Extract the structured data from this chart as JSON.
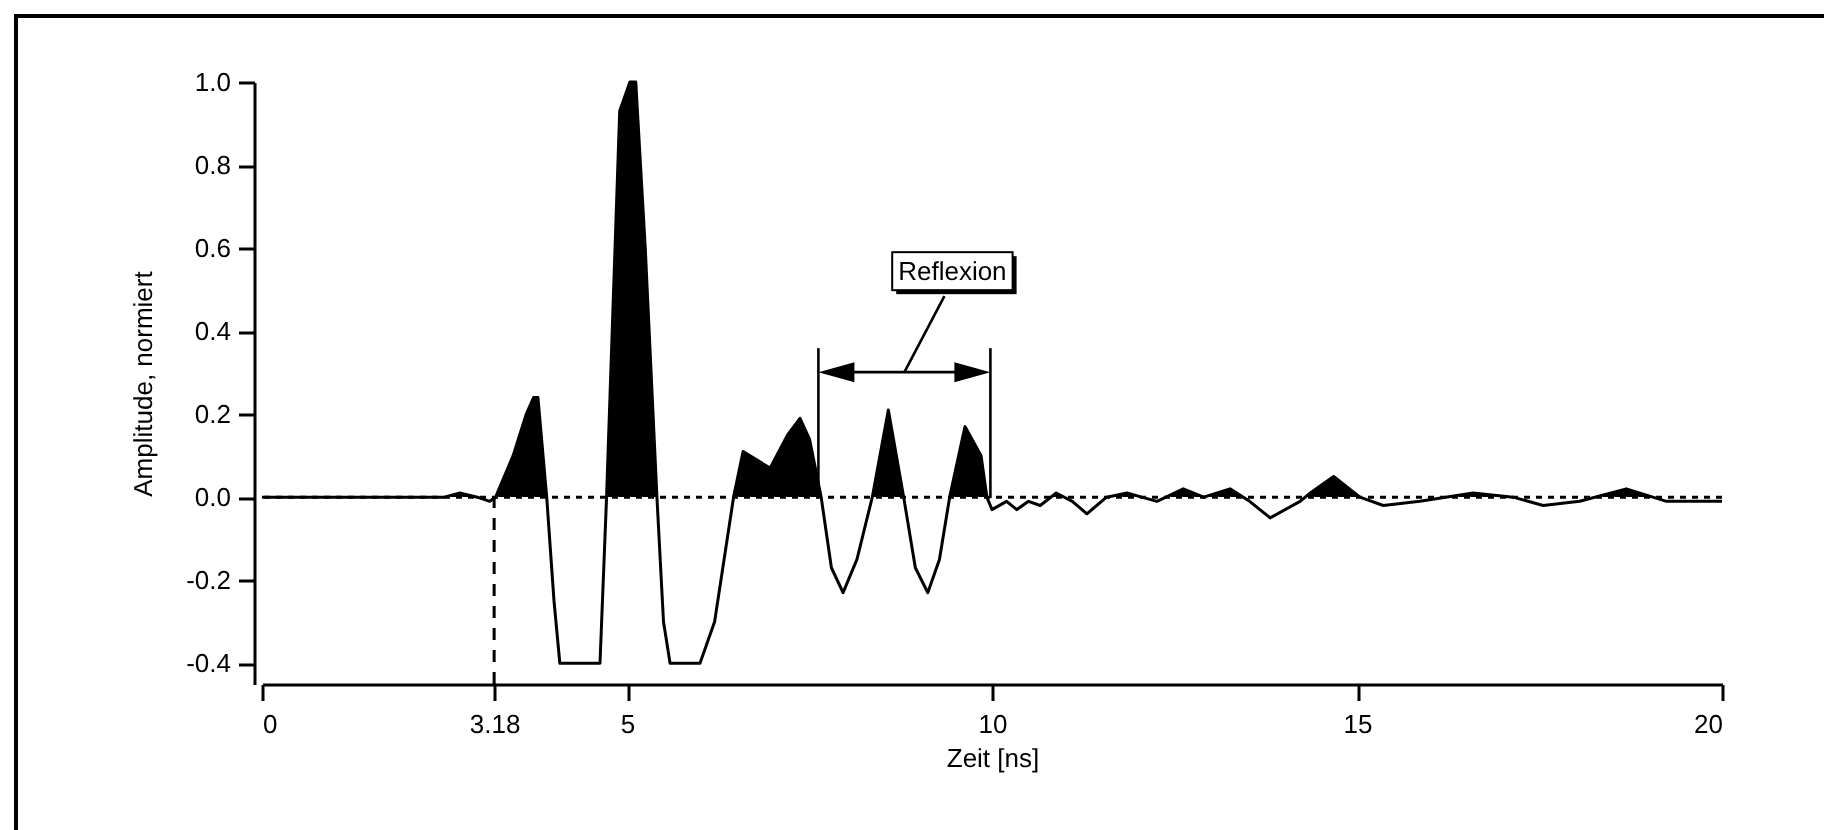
{
  "chart_data": {
    "type": "area",
    "xlabel": "Zeit [ns]",
    "ylabel": "Amplitude, normiert",
    "xlim": [
      0,
      20
    ],
    "xticks": [
      0,
      3.18,
      5,
      10,
      15,
      20
    ],
    "ylim": [
      -0.45,
      1.0
    ],
    "yticks": [
      {
        "value": -0.4,
        "label": "-0.4"
      },
      {
        "value": -0.2,
        "label": "-0.2"
      },
      {
        "value": 0,
        "label": "0.0"
      },
      {
        "value": 0.2,
        "label": "0.2"
      },
      {
        "value": 0.4,
        "label": "0.4"
      },
      {
        "value": 0.6,
        "label": "0.6"
      },
      {
        "value": 0.8,
        "label": "0.8"
      },
      {
        "value": 1,
        "label": "1.0"
      }
    ],
    "x": [
      0,
      1,
      2,
      2.5,
      2.71,
      2.95,
      3.12,
      3.2,
      3.44,
      3.62,
      3.72,
      3.78,
      3.9,
      4.0,
      4.08,
      4.63,
      4.72,
      4.9,
      5.04,
      5.12,
      5.25,
      5.41,
      5.5,
      5.59,
      6.0,
      6.2,
      6.46,
      6.59,
      6.96,
      7.2,
      7.37,
      7.5,
      7.66,
      7.8,
      7.96,
      8.15,
      8.36,
      8.58,
      8.79,
      8.95,
      9.12,
      9.28,
      9.42,
      9.63,
      9.85,
      9.93,
      10.0,
      10.2,
      10.34,
      10.5,
      10.66,
      10.88,
      11.1,
      11.3,
      11.57,
      11.85,
      12.05,
      12.26,
      12.62,
      12.9,
      13.26,
      13.53,
      13.81,
      14.22,
      14.36,
      14.68,
      15.04,
      15.36,
      15.86,
      16.59,
      17.14,
      17.55,
      18.05,
      18.69,
      19.24,
      20
    ],
    "series": [
      {
        "color": "#000000",
        "values": [
          0,
          0,
          0,
          0,
          0.01,
          0,
          -0.01,
          0,
          0.1,
          0.2,
          0.24,
          0.24,
          0,
          -0.25,
          -0.4,
          -0.4,
          0,
          0.93,
          1.0,
          1.0,
          0.6,
          0,
          -0.3,
          -0.4,
          -0.4,
          -0.3,
          0,
          0.11,
          0.07,
          0.15,
          0.19,
          0.14,
          0,
          -0.17,
          -0.23,
          -0.15,
          0,
          0.21,
          0,
          -0.17,
          -0.23,
          -0.15,
          0,
          0.17,
          0.1,
          0,
          -0.03,
          -0.01,
          -0.03,
          -0.01,
          -0.02,
          0.01,
          -0.01,
          -0.04,
          0,
          0.01,
          0,
          -0.01,
          0.02,
          0,
          0.02,
          -0.01,
          -0.05,
          -0.01,
          0.01,
          0.05,
          0,
          -0.02,
          -0.01,
          0.01,
          0,
          -0.02,
          -0.01,
          0.02,
          -0.01,
          -0.01
        ]
      }
    ],
    "ref_lines": [
      {
        "axis": "y",
        "value": 0,
        "line_style": "dotted"
      },
      {
        "axis": "x",
        "value": 3.18,
        "line_style": "dashed"
      }
    ],
    "annotations": [
      "Reflexion"
    ],
    "grid": false
  }
}
